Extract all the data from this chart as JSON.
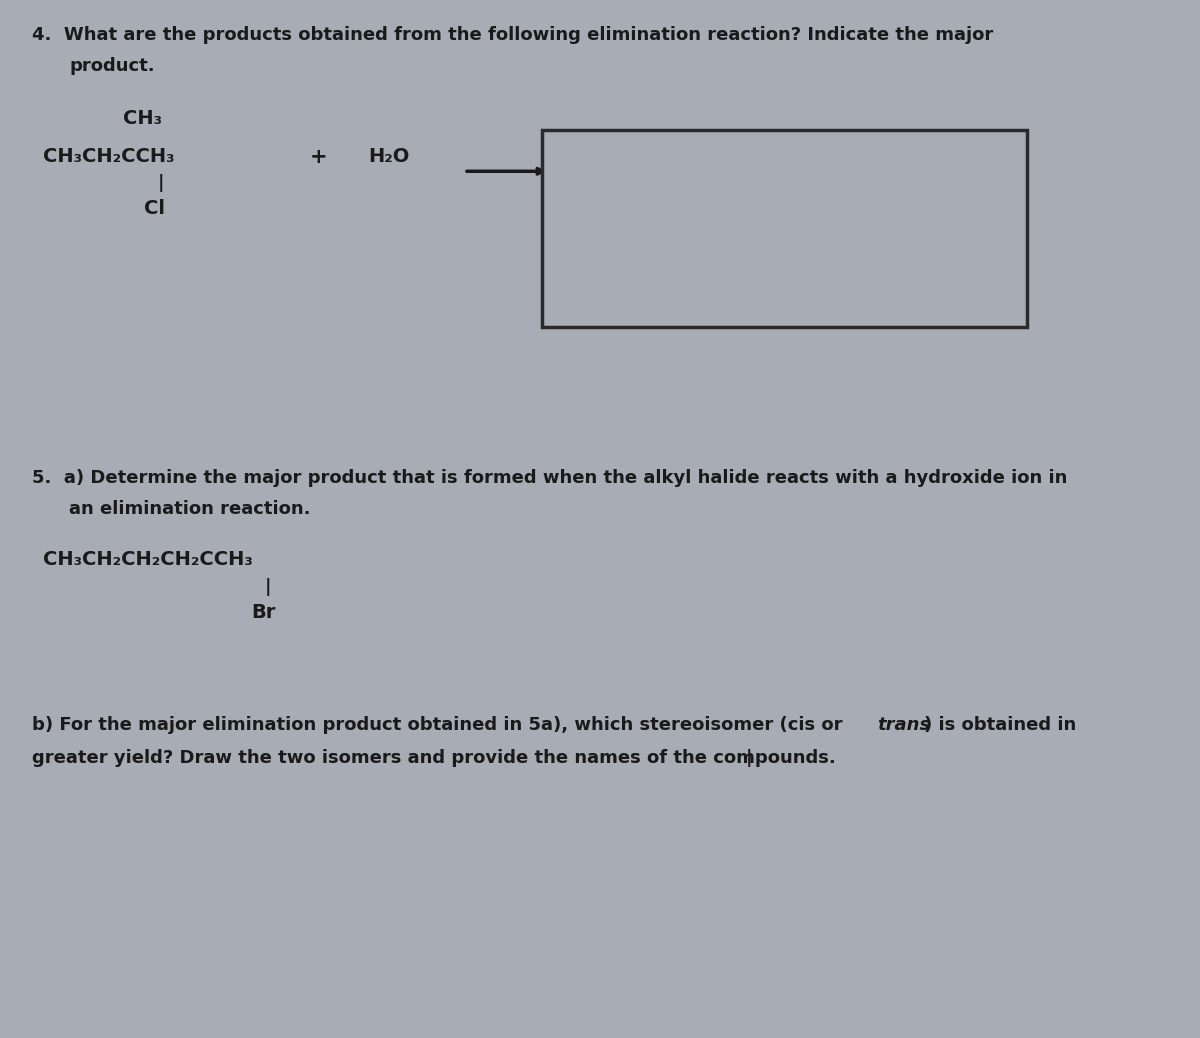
{
  "bg_color": "#a8adb5",
  "text_color": "#1a1a1a",
  "fig_width": 12.0,
  "fig_height": 10.38,
  "q4_title": "4.  What are the products obtained from the following elimination reaction? Indicate the major",
  "q4_title2": "product.",
  "q4_ch3_top": "CH₃",
  "q4_reactant_main": "CH₃CH₂CCH₃",
  "q4_cl": "Cl",
  "q4_plus": "+",
  "q4_h2o": "H₂O",
  "q4_question": "?",
  "q5_title": "5.  a) Determine the major product that is formed when the alkyl halide reacts with a hydroxide ion in",
  "q5_title2": "an elimination reaction.",
  "q5_reactant": "CH₃CH₂CH₂CH₂CCH₃",
  "q5_br": "Br",
  "q5b_part1": "b) For the major elimination product obtained in 5a), which stereoisomer (cis or ",
  "q5b_trans": "trans",
  "q5b_part2": ") is obtained in",
  "q5b_line2": "greater yield? Draw the two isomers and provide the names of the compounds."
}
